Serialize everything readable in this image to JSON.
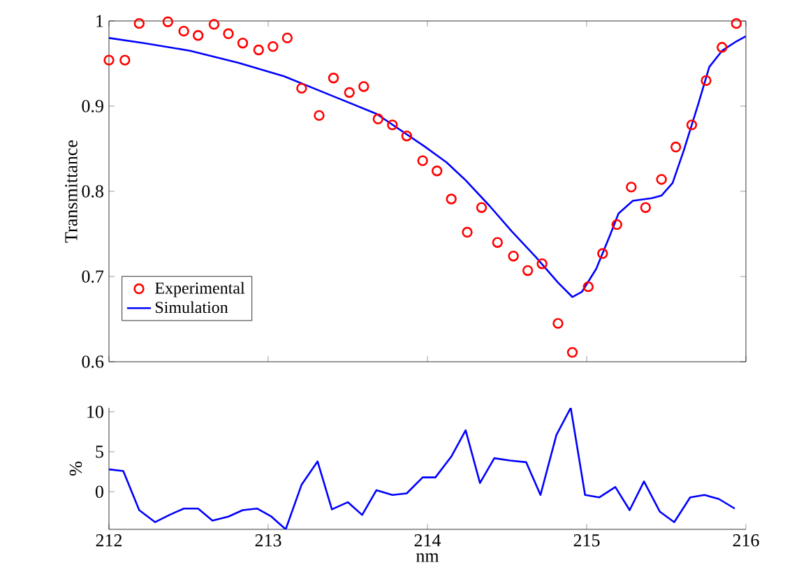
{
  "chart_data": [
    {
      "type": "line",
      "ylabel": "Transmittance",
      "xlim": [
        212,
        216
      ],
      "xticks": [
        212,
        213,
        214,
        215,
        216
      ],
      "ylim": [
        0.6,
        1
      ],
      "yticks": [
        0.6,
        0.7,
        0.8,
        0.9,
        1
      ],
      "tick_labels": "y",
      "legend": "bottom left",
      "grid": false,
      "series": [
        {
          "name": "Experimental",
          "type": "scatter",
          "marker": "circle",
          "color": "#ff0000",
          "x": [
            212.0,
            212.1,
            212.19,
            212.37,
            212.47,
            212.56,
            212.66,
            212.75,
            212.84,
            212.94,
            213.03,
            213.12,
            213.21,
            213.32,
            213.41,
            213.51,
            213.6,
            213.69,
            213.78,
            213.87,
            213.97,
            214.06,
            214.15,
            214.25,
            214.34,
            214.44,
            214.54,
            214.63,
            214.72,
            214.82,
            214.91,
            215.01,
            215.1,
            215.19,
            215.28,
            215.37,
            215.47,
            215.56,
            215.66,
            215.75,
            215.85,
            215.94
          ],
          "values": [
            0.954,
            0.954,
            0.997,
            0.999,
            0.988,
            0.983,
            0.996,
            0.985,
            0.974,
            0.966,
            0.97,
            0.98,
            0.921,
            0.889,
            0.933,
            0.916,
            0.923,
            0.885,
            0.878,
            0.865,
            0.836,
            0.824,
            0.791,
            0.752,
            0.781,
            0.74,
            0.724,
            0.707,
            0.715,
            0.645,
            0.611,
            0.688,
            0.727,
            0.761,
            0.805,
            0.781,
            0.814,
            0.852,
            0.878,
            0.93,
            0.969,
            0.997
          ]
        },
        {
          "name": "Simulation",
          "type": "line",
          "marker": "none",
          "color": "#0000ff",
          "x": [
            212.0,
            212.22,
            212.51,
            212.81,
            213.1,
            213.39,
            213.68,
            213.98,
            214.12,
            214.24,
            214.39,
            214.53,
            214.68,
            214.82,
            214.91,
            214.97,
            215.06,
            215.15,
            215.2,
            215.29,
            215.41,
            215.47,
            215.54,
            215.61,
            215.7,
            215.77,
            215.85,
            215.94,
            216.0
          ],
          "values": [
            0.98,
            0.974,
            0.965,
            0.951,
            0.935,
            0.913,
            0.891,
            0.853,
            0.834,
            0.813,
            0.783,
            0.753,
            0.723,
            0.693,
            0.676,
            0.682,
            0.709,
            0.75,
            0.774,
            0.789,
            0.792,
            0.795,
            0.81,
            0.848,
            0.902,
            0.946,
            0.965,
            0.976,
            0.982
          ]
        }
      ]
    },
    {
      "type": "line",
      "xlabel": "nm",
      "ylabel": "%",
      "xlim": [
        212,
        216
      ],
      "xticks": [
        212,
        213,
        214,
        215,
        216
      ],
      "ylim": [
        -4.7,
        10.5
      ],
      "yticks": [
        0,
        5,
        10
      ],
      "legend": false,
      "grid": false,
      "series": [
        {
          "color": "#0000ff",
          "x": [
            212.0,
            212.09,
            212.19,
            212.29,
            212.38,
            212.47,
            212.56,
            212.65,
            212.75,
            212.84,
            212.93,
            213.02,
            213.11,
            213.21,
            213.31,
            213.4,
            213.5,
            213.59,
            213.68,
            213.78,
            213.87,
            213.97,
            214.05,
            214.15,
            214.24,
            214.33,
            214.42,
            214.52,
            214.62,
            214.71,
            214.81,
            214.9,
            214.99,
            215.08,
            215.18,
            215.27,
            215.36,
            215.46,
            215.55,
            215.65,
            215.74,
            215.83,
            215.93
          ],
          "values": [
            2.8,
            2.6,
            -2.3,
            -3.8,
            -2.9,
            -2.1,
            -2.1,
            -3.6,
            -3.1,
            -2.3,
            -2.1,
            -3.1,
            -4.7,
            0.9,
            3.8,
            -2.2,
            -1.3,
            -2.9,
            0.2,
            -0.4,
            -0.2,
            1.8,
            1.8,
            4.4,
            7.7,
            1.1,
            4.2,
            3.9,
            3.7,
            -0.4,
            7.1,
            10.5,
            -0.4,
            -0.7,
            0.6,
            -2.3,
            1.3,
            -2.5,
            -3.8,
            -0.7,
            -0.4,
            -0.9,
            -2.1
          ]
        }
      ]
    }
  ]
}
